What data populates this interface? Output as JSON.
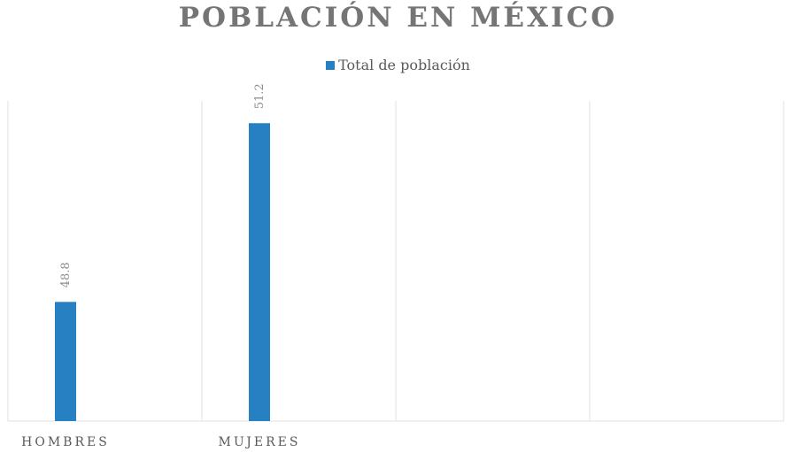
{
  "chart_data": {
    "type": "bar",
    "title": "POBLACIÓN EN MÉXICO",
    "categories": [
      "HOMBRES",
      "MUJERES",
      "",
      ""
    ],
    "series": [
      {
        "name": "Total de población",
        "values": [
          48.8,
          51.2,
          null,
          null
        ]
      }
    ],
    "data_labels": [
      "48.8",
      "51.2"
    ],
    "ylim": [
      47.2,
      51.5
    ],
    "grid": "vertical",
    "legend_position": "top",
    "colors": {
      "bar": "#2680c2",
      "grid": "#e0e0e0"
    }
  }
}
